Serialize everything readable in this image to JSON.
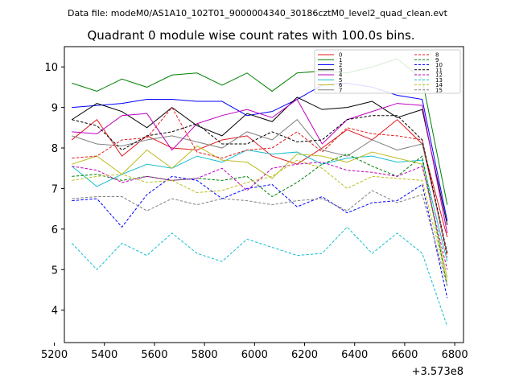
{
  "chart_data": {
    "type": "line",
    "suptitle": "Data file: modeM0/AS1A10_102T01_9000004340_30186cztM0_level2_quad_clean.evt",
    "title": "Quadrant 0 module wise count rates with 100.0s bins.",
    "xlabel": "",
    "ylabel": "",
    "x_offset_label": "+3.573e8",
    "xlim": [
      5240,
      6835
    ],
    "ylim": [
      3.2,
      10.5
    ],
    "x_ticks": [
      5200,
      5400,
      5600,
      5800,
      6000,
      6200,
      6400,
      6600,
      6800
    ],
    "x_tick_labels": [
      "5200",
      "5400",
      "5600",
      "5800",
      "6000",
      "6200",
      "6400",
      "6600",
      "6800"
    ],
    "y_ticks": [
      4,
      5,
      6,
      7,
      8,
      9,
      10
    ],
    "y_tick_labels": [
      "4",
      "5",
      "6",
      "7",
      "8",
      "9",
      "10"
    ],
    "legend_position": "top-right",
    "x": [
      5270,
      5370,
      5470,
      5570,
      5670,
      5770,
      5870,
      5970,
      6070,
      6170,
      6270,
      6370,
      6470,
      6570,
      6670,
      6770
    ],
    "series": [
      {
        "name": "0",
        "color": "#e41a1c",
        "dash": false,
        "values": [
          8.2,
          8.7,
          7.8,
          8.3,
          8.0,
          7.95,
          8.2,
          8.3,
          7.8,
          7.6,
          8.0,
          8.45,
          8.2,
          8.7,
          8.1,
          5.8
        ]
      },
      {
        "name": "1",
        "color": "#008000",
        "dash": false,
        "values": [
          9.6,
          9.4,
          9.7,
          9.5,
          9.8,
          9.85,
          9.55,
          9.85,
          9.4,
          9.85,
          9.9,
          9.85,
          10.0,
          10.2,
          9.7,
          6.6
        ]
      },
      {
        "name": "2",
        "color": "#0000ff",
        "dash": false,
        "values": [
          9.0,
          9.05,
          9.1,
          9.2,
          9.2,
          9.15,
          9.15,
          8.8,
          8.9,
          9.2,
          9.55,
          9.6,
          9.5,
          9.3,
          9.2,
          6.2
        ]
      },
      {
        "name": "3",
        "color": "#000000",
        "dash": false,
        "values": [
          8.7,
          9.1,
          8.9,
          8.5,
          9.0,
          8.55,
          8.3,
          8.85,
          8.65,
          9.25,
          8.95,
          9.0,
          9.15,
          8.75,
          8.95,
          6.1
        ]
      },
      {
        "name": "4",
        "color": "#c000c0",
        "dash": false,
        "values": [
          8.4,
          8.35,
          8.8,
          8.85,
          7.95,
          8.6,
          8.8,
          8.95,
          8.75,
          9.2,
          8.1,
          8.7,
          8.9,
          9.1,
          9.05,
          5.9
        ]
      },
      {
        "name": "5",
        "color": "#17becf",
        "dash": false,
        "values": [
          7.55,
          7.05,
          7.35,
          7.6,
          7.5,
          7.8,
          7.65,
          7.95,
          7.85,
          7.9,
          7.6,
          7.75,
          7.8,
          7.65,
          7.7,
          5.2
        ]
      },
      {
        "name": "6",
        "color": "#bcbd22",
        "dash": false,
        "values": [
          7.6,
          7.8,
          7.35,
          7.95,
          7.5,
          8.05,
          7.7,
          7.65,
          7.25,
          7.85,
          7.8,
          7.65,
          7.9,
          7.75,
          7.6,
          4.8
        ]
      },
      {
        "name": "7",
        "color": "#808080",
        "dash": false,
        "values": [
          8.3,
          8.1,
          8.05,
          8.2,
          8.3,
          8.15,
          8.0,
          8.4,
          8.2,
          8.7,
          7.95,
          7.8,
          8.2,
          7.95,
          8.1,
          5.4
        ]
      },
      {
        "name": "8",
        "color": "#e41a1c",
        "dash": true,
        "values": [
          7.75,
          7.8,
          8.2,
          8.25,
          9.0,
          7.9,
          7.75,
          7.95,
          8.0,
          8.4,
          7.9,
          8.5,
          8.35,
          8.3,
          8.2,
          5.3
        ]
      },
      {
        "name": "9",
        "color": "#008000",
        "dash": true,
        "values": [
          7.3,
          7.35,
          7.2,
          7.3,
          7.2,
          7.25,
          7.2,
          7.3,
          6.8,
          7.15,
          7.6,
          7.85,
          7.55,
          7.3,
          7.8,
          4.6
        ]
      },
      {
        "name": "10",
        "color": "#0000ff",
        "dash": true,
        "values": [
          6.7,
          6.75,
          6.05,
          6.85,
          7.3,
          7.2,
          6.75,
          7.0,
          7.1,
          6.55,
          6.8,
          6.4,
          6.65,
          6.7,
          7.1,
          4.3
        ]
      },
      {
        "name": "11",
        "color": "#000000",
        "dash": true,
        "values": [
          8.7,
          8.55,
          7.95,
          8.3,
          8.4,
          8.6,
          8.1,
          8.1,
          8.4,
          8.15,
          8.2,
          8.7,
          8.8,
          8.8,
          8.2,
          5.4
        ]
      },
      {
        "name": "12",
        "color": "#c000c0",
        "dash": true,
        "values": [
          7.55,
          7.45,
          7.15,
          7.3,
          7.2,
          7.25,
          7.5,
          6.95,
          7.5,
          7.6,
          7.65,
          7.45,
          7.4,
          7.3,
          7.55,
          5.0
        ]
      },
      {
        "name": "13",
        "color": "#17becf",
        "dash": true,
        "values": [
          5.65,
          5.0,
          5.65,
          5.35,
          5.9,
          5.4,
          5.2,
          5.75,
          5.55,
          5.35,
          5.4,
          6.05,
          5.4,
          5.9,
          5.4,
          3.6
        ]
      },
      {
        "name": "14",
        "color": "#bcbd22",
        "dash": true,
        "values": [
          7.2,
          7.3,
          7.35,
          7.15,
          7.2,
          6.9,
          6.95,
          7.15,
          7.3,
          7.7,
          7.5,
          7.0,
          7.3,
          7.25,
          7.2,
          4.7
        ]
      },
      {
        "name": "15",
        "color": "#808080",
        "dash": true,
        "values": [
          6.75,
          6.8,
          6.8,
          6.45,
          6.75,
          6.6,
          6.75,
          6.7,
          6.6,
          6.7,
          6.75,
          6.45,
          6.95,
          6.65,
          6.85,
          4.6
        ]
      }
    ]
  }
}
